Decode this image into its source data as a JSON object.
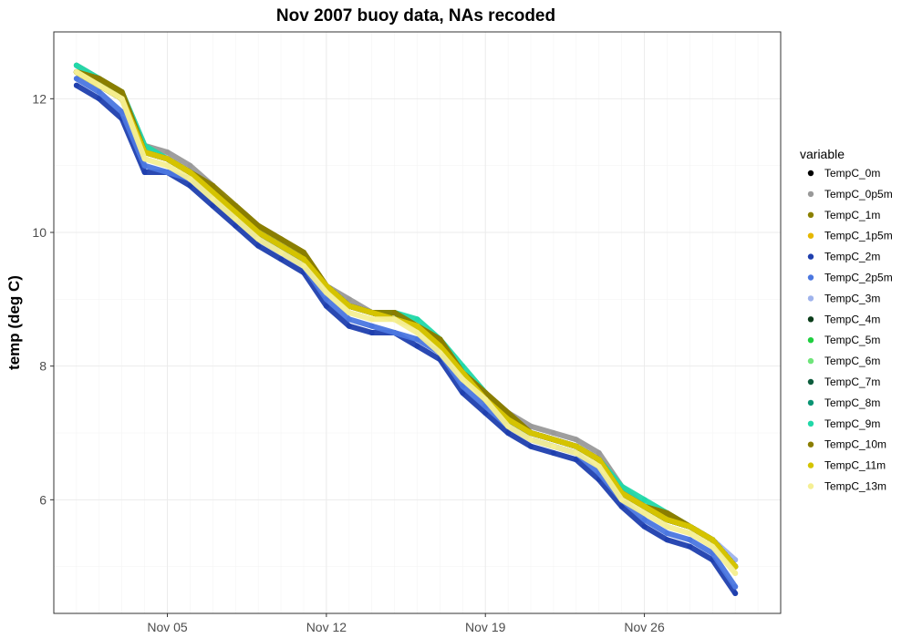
{
  "chart_data": {
    "type": "line",
    "title": "Nov 2007 buoy data, NAs recoded",
    "xlabel": "",
    "ylabel": "temp (deg C)",
    "x_type": "date",
    "xlim": [
      "2007-10-31",
      "2007-12-02"
    ],
    "ylim": [
      4.3,
      13.0
    ],
    "x_ticks": [
      {
        "date": "2007-11-05",
        "label": "Nov 05"
      },
      {
        "date": "2007-11-12",
        "label": "Nov 12"
      },
      {
        "date": "2007-11-19",
        "label": "Nov 19"
      },
      {
        "date": "2007-11-26",
        "label": "Nov 26"
      }
    ],
    "y_ticks": [
      6,
      8,
      10,
      12
    ],
    "grid": true,
    "legend": {
      "title": "variable",
      "position": "right"
    },
    "x": [
      "2007-11-01",
      "2007-11-02",
      "2007-11-03",
      "2007-11-04",
      "2007-11-05",
      "2007-11-06",
      "2007-11-07",
      "2007-11-08",
      "2007-11-09",
      "2007-11-10",
      "2007-11-11",
      "2007-11-12",
      "2007-11-13",
      "2007-11-14",
      "2007-11-15",
      "2007-11-16",
      "2007-11-17",
      "2007-11-18",
      "2007-11-19",
      "2007-11-20",
      "2007-11-21",
      "2007-11-22",
      "2007-11-23",
      "2007-11-24",
      "2007-11-25",
      "2007-11-26",
      "2007-11-27",
      "2007-11-28",
      "2007-11-29",
      "2007-11-30"
    ],
    "series": [
      {
        "name": "TempC_0m",
        "color": "#000000",
        "values": [
          12.4,
          12.2,
          12.0,
          11.2,
          11.1,
          10.9,
          10.6,
          10.3,
          10.0,
          9.8,
          9.6,
          9.2,
          8.9,
          8.8,
          8.7,
          8.6,
          8.3,
          7.9,
          7.5,
          7.2,
          7.0,
          6.9,
          6.8,
          6.6,
          6.1,
          5.9,
          5.7,
          5.6,
          5.4,
          5.0
        ]
      },
      {
        "name": "TempC_0p5m",
        "color": "#999999",
        "values": [
          12.5,
          12.3,
          12.1,
          11.3,
          11.2,
          11.0,
          10.7,
          10.3,
          10.0,
          9.8,
          9.6,
          9.2,
          9.0,
          8.8,
          8.7,
          8.6,
          8.4,
          7.9,
          7.6,
          7.3,
          7.1,
          7.0,
          6.9,
          6.7,
          6.2,
          5.9,
          5.7,
          5.6,
          5.4,
          5.0
        ]
      },
      {
        "name": "TempC_1m",
        "color": "#8b8000",
        "values": [
          12.4,
          12.3,
          12.1,
          11.2,
          11.1,
          10.9,
          10.6,
          10.4,
          10.1,
          9.9,
          9.7,
          9.2,
          8.9,
          8.8,
          8.7,
          8.6,
          8.4,
          7.9,
          7.6,
          7.3,
          7.0,
          6.9,
          6.8,
          6.6,
          6.1,
          5.9,
          5.8,
          5.6,
          5.4,
          5.0
        ]
      },
      {
        "name": "TempC_1p5m",
        "color": "#e6b800",
        "values": [
          12.4,
          12.2,
          12.0,
          11.2,
          11.1,
          10.9,
          10.6,
          10.3,
          10.0,
          9.8,
          9.6,
          9.2,
          8.9,
          8.8,
          8.7,
          8.6,
          8.3,
          7.9,
          7.5,
          7.2,
          7.0,
          6.9,
          6.8,
          6.6,
          6.1,
          5.9,
          5.7,
          5.6,
          5.4,
          5.0
        ]
      },
      {
        "name": "TempC_2m",
        "color": "#1f3fae",
        "values": [
          12.2,
          12.0,
          11.7,
          10.9,
          10.9,
          10.7,
          10.4,
          10.1,
          9.8,
          9.6,
          9.4,
          8.9,
          8.6,
          8.5,
          8.5,
          8.3,
          8.1,
          7.6,
          7.3,
          7.0,
          6.8,
          6.7,
          6.6,
          6.3,
          5.9,
          5.6,
          5.4,
          5.3,
          5.1,
          4.6
        ]
      },
      {
        "name": "TempC_2p5m",
        "color": "#4b77e0",
        "values": [
          12.3,
          12.1,
          11.8,
          11.0,
          10.9,
          10.8,
          10.5,
          10.2,
          9.9,
          9.7,
          9.5,
          9.0,
          8.7,
          8.6,
          8.5,
          8.4,
          8.2,
          7.7,
          7.4,
          7.1,
          6.9,
          6.8,
          6.7,
          6.4,
          6.0,
          5.7,
          5.5,
          5.4,
          5.2,
          4.7
        ]
      },
      {
        "name": "TempC_3m",
        "color": "#9fb3ec",
        "values": [
          12.5,
          12.2,
          12.0,
          11.2,
          11.1,
          10.9,
          10.6,
          10.3,
          10.0,
          9.8,
          9.6,
          9.2,
          8.9,
          8.8,
          8.8,
          8.6,
          8.4,
          7.9,
          7.6,
          7.2,
          7.0,
          6.9,
          6.8,
          6.6,
          6.1,
          5.9,
          5.7,
          5.6,
          5.4,
          5.1
        ]
      },
      {
        "name": "TempC_4m",
        "color": "#0b3d1a",
        "values": [
          12.4,
          12.2,
          12.0,
          11.2,
          11.1,
          10.9,
          10.6,
          10.3,
          10.0,
          9.8,
          9.6,
          9.2,
          8.9,
          8.8,
          8.7,
          8.6,
          8.3,
          7.9,
          7.5,
          7.2,
          7.0,
          6.9,
          6.8,
          6.6,
          6.1,
          5.9,
          5.7,
          5.6,
          5.4,
          5.0
        ]
      },
      {
        "name": "TempC_5m",
        "color": "#1fcf3f",
        "values": [
          12.4,
          12.2,
          12.0,
          11.2,
          11.1,
          10.9,
          10.6,
          10.3,
          10.0,
          9.8,
          9.6,
          9.2,
          8.9,
          8.8,
          8.8,
          8.6,
          8.4,
          7.9,
          7.6,
          7.2,
          7.0,
          6.9,
          6.8,
          6.6,
          6.1,
          5.9,
          5.7,
          5.6,
          5.4,
          5.0
        ]
      },
      {
        "name": "TempC_6m",
        "color": "#6fe57a",
        "values": [
          12.4,
          12.2,
          12.0,
          11.2,
          11.1,
          10.9,
          10.6,
          10.3,
          10.0,
          9.8,
          9.6,
          9.2,
          8.9,
          8.8,
          8.7,
          8.6,
          8.3,
          7.9,
          7.5,
          7.2,
          7.0,
          6.9,
          6.8,
          6.6,
          6.1,
          5.9,
          5.7,
          5.6,
          5.4,
          5.0
        ]
      },
      {
        "name": "TempC_7m",
        "color": "#0d5c3c",
        "values": [
          12.4,
          12.2,
          12.0,
          11.2,
          11.1,
          10.9,
          10.6,
          10.3,
          10.0,
          9.8,
          9.6,
          9.2,
          8.9,
          8.8,
          8.7,
          8.6,
          8.3,
          7.9,
          7.5,
          7.2,
          7.0,
          6.9,
          6.8,
          6.6,
          6.1,
          5.9,
          5.7,
          5.6,
          5.4,
          5.0
        ]
      },
      {
        "name": "TempC_8m",
        "color": "#0a9473",
        "values": [
          12.4,
          12.2,
          12.0,
          11.2,
          11.1,
          10.9,
          10.6,
          10.3,
          10.0,
          9.8,
          9.6,
          9.2,
          8.9,
          8.8,
          8.7,
          8.6,
          8.3,
          7.9,
          7.5,
          7.2,
          7.0,
          6.9,
          6.8,
          6.6,
          6.1,
          5.9,
          5.7,
          5.6,
          5.4,
          5.0
        ]
      },
      {
        "name": "TempC_9m",
        "color": "#21d8a8",
        "values": [
          12.5,
          12.3,
          12.1,
          11.3,
          11.1,
          10.9,
          10.6,
          10.3,
          10.0,
          9.8,
          9.6,
          9.2,
          8.9,
          8.8,
          8.8,
          8.7,
          8.4,
          8.0,
          7.6,
          7.2,
          7.0,
          6.9,
          6.8,
          6.6,
          6.2,
          6.0,
          5.8,
          5.6,
          5.4,
          5.0
        ]
      },
      {
        "name": "TempC_10m",
        "color": "#8a7d00",
        "values": [
          12.4,
          12.3,
          12.1,
          11.2,
          11.1,
          10.9,
          10.7,
          10.4,
          10.1,
          9.9,
          9.7,
          9.2,
          8.9,
          8.8,
          8.8,
          8.6,
          8.4,
          7.9,
          7.6,
          7.3,
          7.0,
          6.9,
          6.8,
          6.6,
          6.1,
          5.9,
          5.8,
          5.6,
          5.4,
          5.0
        ]
      },
      {
        "name": "TempC_11m",
        "color": "#d4c400",
        "values": [
          12.4,
          12.2,
          12.0,
          11.2,
          11.1,
          10.9,
          10.6,
          10.3,
          10.0,
          9.8,
          9.6,
          9.2,
          8.9,
          8.8,
          8.7,
          8.6,
          8.3,
          7.9,
          7.5,
          7.2,
          7.0,
          6.9,
          6.8,
          6.6,
          6.1,
          5.9,
          5.7,
          5.6,
          5.4,
          5.0
        ]
      },
      {
        "name": "TempC_13m",
        "color": "#f5ef94",
        "values": [
          12.4,
          12.2,
          12.0,
          11.1,
          11.0,
          10.8,
          10.5,
          10.2,
          9.9,
          9.7,
          9.5,
          9.1,
          8.8,
          8.7,
          8.7,
          8.5,
          8.2,
          7.8,
          7.5,
          7.1,
          6.9,
          6.8,
          6.7,
          6.5,
          6.0,
          5.8,
          5.6,
          5.5,
          5.3,
          4.9
        ]
      }
    ]
  }
}
